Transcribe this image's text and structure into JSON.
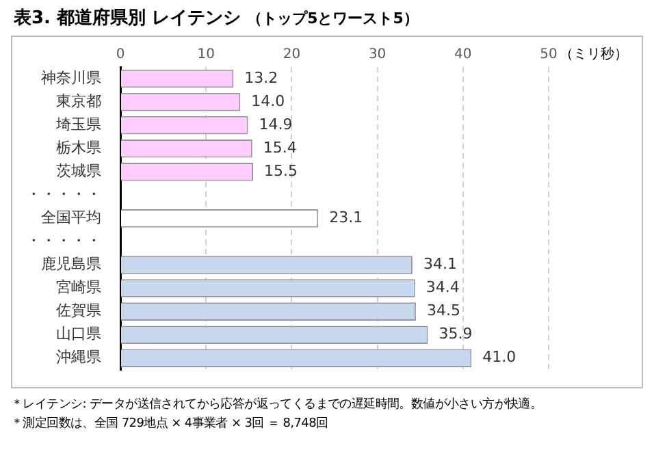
{
  "chart_data": {
    "type": "bar",
    "orientation": "horizontal",
    "title": "表3. 都道府県別 レイテンシ",
    "subtitle": "（トップ5とワースト5）",
    "xlabel": "（ミリ秒）",
    "categories": [
      "神奈川県",
      "東京都",
      "埼玉県",
      "栃木県",
      "茨城県",
      "・・・・・",
      "全国平均",
      "・・・・・",
      "鹿児島県",
      "宮崎県",
      "佐賀県",
      "山口県",
      "沖縄県"
    ],
    "values": [
      13.2,
      14.0,
      14.9,
      15.4,
      15.5,
      null,
      23.1,
      null,
      34.1,
      34.4,
      34.5,
      35.9,
      41.0
    ],
    "value_labels": [
      "13.2",
      "14.0",
      "14.9",
      "15.4",
      "15.5",
      null,
      "23.1",
      null,
      "34.1",
      "34.4",
      "34.5",
      "35.9",
      "41.0"
    ],
    "colors": [
      "#ffccff",
      "#ffccff",
      "#ffccff",
      "#ffccff",
      "#ffccff",
      "#ffffff",
      "#ffffff",
      "#ffffff",
      "#c6d7ee",
      "#c6d7ee",
      "#c6d7ee",
      "#c6d7ee",
      "#c6d7ee"
    ],
    "xlim": [
      0,
      50
    ],
    "xticks": [
      0,
      10,
      20,
      30,
      40,
      50
    ],
    "grid": "x",
    "annotations": [
      "＊レイテンシ: データが送信されてから応答が返ってくるまでの遅延時間。数値が小さい方が快適。",
      "＊測定回数は、全国 729地点 × 4事業者 × 3回 ＝ 8,748回"
    ]
  }
}
